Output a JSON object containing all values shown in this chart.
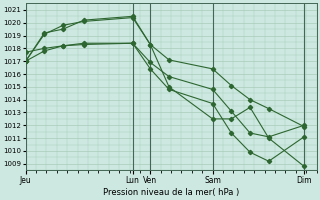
{
  "title": "",
  "xlabel": "Pression niveau de la mer( hPa )",
  "ylim": [
    1008.5,
    1021.5
  ],
  "yticks": [
    1009,
    1010,
    1011,
    1012,
    1013,
    1014,
    1015,
    1016,
    1017,
    1018,
    1019,
    1020,
    1021
  ],
  "xlim": [
    0,
    280
  ],
  "xtick_positions": [
    0,
    103,
    120,
    180,
    268
  ],
  "xtick_labels": [
    "Jeu",
    "Lun",
    "Ven",
    "Sam",
    "Dim"
  ],
  "vline_positions": [
    0,
    103,
    120,
    180,
    268
  ],
  "background_color": "#cce8e0",
  "grid_color": "#aaccbb",
  "line_color": "#2d6630",
  "series": [
    {
      "x": [
        0,
        18,
        36,
        56,
        103,
        120,
        138,
        180,
        198,
        216,
        234,
        268
      ],
      "y": [
        1017.0,
        1019.1,
        1019.8,
        1020.1,
        1020.4,
        1018.3,
        1017.1,
        1016.4,
        1015.1,
        1014.0,
        1013.3,
        1011.9
      ],
      "marker": "D"
    },
    {
      "x": [
        0,
        18,
        36,
        56,
        103,
        120,
        138,
        180,
        198,
        216,
        234,
        268
      ],
      "y": [
        1017.0,
        1019.2,
        1019.5,
        1020.2,
        1020.5,
        1018.3,
        1015.0,
        1012.5,
        1012.5,
        1013.4,
        1011.0,
        1008.8
      ],
      "marker": "D"
    },
    {
      "x": [
        0,
        18,
        36,
        56,
        103,
        120,
        138,
        180,
        198,
        216,
        234,
        268
      ],
      "y": [
        1017.7,
        1018.0,
        1018.2,
        1018.3,
        1018.4,
        1016.9,
        1015.8,
        1014.8,
        1013.1,
        1011.4,
        1011.1,
        1012.0
      ],
      "marker": "D"
    },
    {
      "x": [
        0,
        18,
        36,
        56,
        103,
        120,
        138,
        180,
        198,
        216,
        234,
        268
      ],
      "y": [
        1017.0,
        1017.8,
        1018.2,
        1018.4,
        1018.4,
        1016.4,
        1014.8,
        1013.7,
        1011.4,
        1009.9,
        1009.2,
        1011.1
      ],
      "marker": "D"
    }
  ]
}
